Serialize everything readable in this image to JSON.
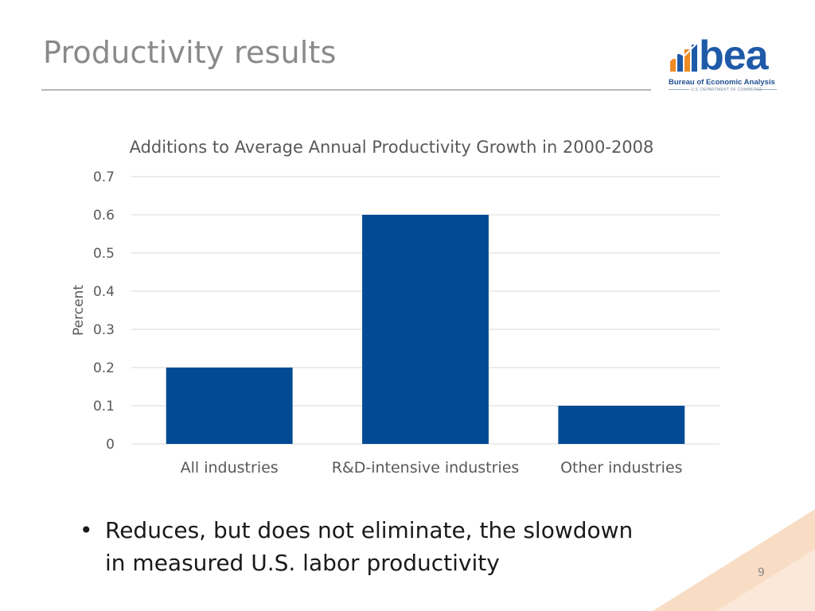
{
  "slide": {
    "title": "Productivity results",
    "page_number": "9",
    "bullet": "Reduces, but does not eliminate, the slowdown in measured U.S. labor productivity",
    "bullet_marker": "•"
  },
  "logo": {
    "word": "bea",
    "name": "Bureau of Economic Analysis",
    "department": "U.S. DEPARTMENT OF COMMERCE"
  },
  "colors": {
    "bar": "#004b93",
    "grid": "#d9d9d9",
    "title": "#8a8a8a",
    "corner": "#f6d2b4"
  },
  "chart_data": {
    "type": "bar",
    "title": "Additions to Average Annual Productivity Growth in 2000-2008",
    "ylabel": "Percent",
    "xlabel": "",
    "categories": [
      "All industries",
      "R&D-intensive industries",
      "Other industries"
    ],
    "values": [
      0.2,
      0.6,
      0.1
    ],
    "ylim": [
      0,
      0.7
    ],
    "yticks": [
      "0",
      "0.1",
      "0.2",
      "0.3",
      "0.4",
      "0.5",
      "0.6",
      "0.7"
    ],
    "grid": true,
    "legend": "none"
  }
}
